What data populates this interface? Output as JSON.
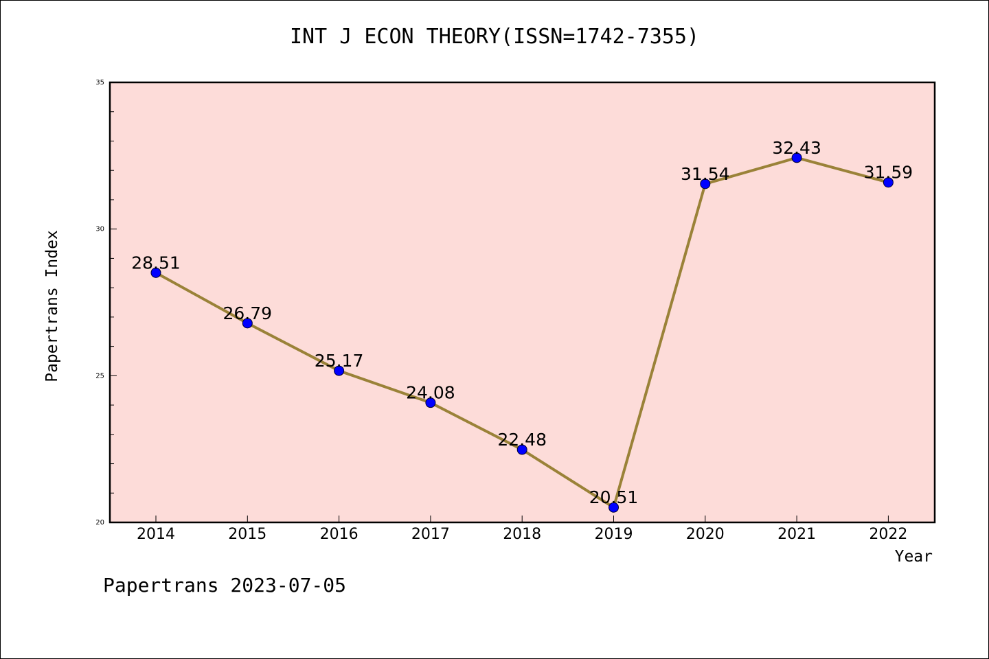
{
  "chart_data": {
    "type": "line",
    "title": "INT J ECON THEORY(ISSN=1742-7355)",
    "xlabel": "Year",
    "ylabel": "Papertrans Index",
    "categories": [
      "2014",
      "2015",
      "2016",
      "2017",
      "2018",
      "2019",
      "2020",
      "2021",
      "2022"
    ],
    "series": [
      {
        "values": [
          28.51,
          26.79,
          25.17,
          24.08,
          22.48,
          20.51,
          31.54,
          32.43,
          31.59
        ]
      }
    ],
    "data_labels": [
      "28.51",
      "26.79",
      "25.17",
      "24.08",
      "22.48",
      "20.51",
      "31.54",
      "32.43",
      "31.59"
    ],
    "ylim": [
      20,
      35
    ],
    "yticks": [
      20,
      25,
      30,
      35
    ],
    "grid": false,
    "plot_background": "#fddcd9",
    "line_color": "#9a8238",
    "marker_color": "#0000ff"
  },
  "footer": "Papertrans 2023-07-05"
}
